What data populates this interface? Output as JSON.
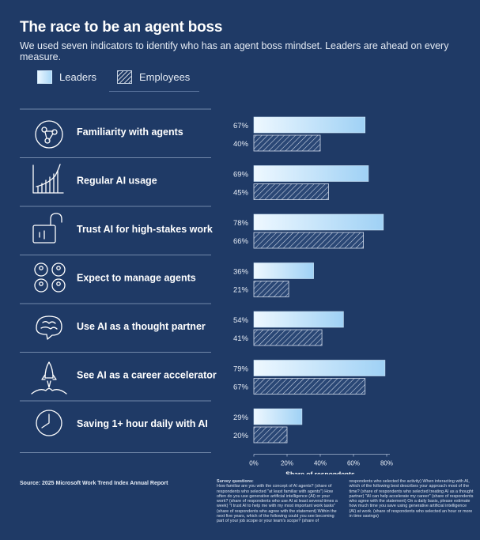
{
  "title": "The race to be an agent boss",
  "subtitle": "We used seven indicators to identify who has an agent boss mindset. Leaders are ahead on every measure.",
  "legend": {
    "leaders": "Leaders",
    "employees": "Employees"
  },
  "chart_data": {
    "type": "bar",
    "orientation": "horizontal",
    "categories": [
      "Familiarity with agents",
      "Regular AI usage",
      "Trust AI for high-stakes work",
      "Expect to manage agents",
      "Use AI as a thought partner",
      "See AI as a career accelerator",
      "Saving 1+ hour daily with AI"
    ],
    "icons": [
      "agent-network-icon",
      "bar-growth-icon",
      "unlocked-padlock-icon",
      "team-agents-icon",
      "brain-icon",
      "rocket-launch-icon",
      "clock-icon"
    ],
    "series": [
      {
        "name": "Leaders",
        "values": [
          67,
          69,
          78,
          36,
          54,
          79,
          29
        ],
        "labels": [
          "67%",
          "69%",
          "78%",
          "36%",
          "54%",
          "79%",
          "29%"
        ]
      },
      {
        "name": "Employees",
        "values": [
          40,
          45,
          66,
          21,
          41,
          67,
          20
        ],
        "labels": [
          "40%",
          "45%",
          "66%",
          "21%",
          "41%",
          "67%",
          "20%"
        ]
      }
    ],
    "xlim": [
      0,
      80
    ],
    "xticks": [
      "0%",
      "20%",
      "40%",
      "60%",
      "80%"
    ],
    "xlabel": "Share of respondents",
    "legend_position": "top-left",
    "colors": {
      "leaders_start": "#eef8ff",
      "leaders_end": "#9fd1f5",
      "employees_hatch": "#c7d3e3",
      "background": "#1f3a66"
    }
  },
  "footer": {
    "source": "Source: 2025 Microsoft Work Trend Index Annual Report",
    "survey_heading": "Survey questions:",
    "survey_text": "How familiar are you with the concept of AI agents? (share of respondents who selected \"at least familiar with agents\") How often do you use generative artificial intelligence (AI) or your work? (share of respondents who use AI at least several times a week) \"I trust AI to help me with my most important work tasks\" (share of respondents who agree with the statement) Within the next five years, which of the following could you see becoming part of your job scope or your team's scope? (share of respondents who selected the activity) When interacting with AI, which of the following best describes your approach most of the time? (share of respondents who selected treating AI as a thought partner) \"AI can help accelerate my career\" (share of respondents who agree with the statement) On a daily basis, please estimate how much time you save using generative artificial intelligence (AI) at work. (share of respondents who selected an hour or more in time savings)"
  }
}
